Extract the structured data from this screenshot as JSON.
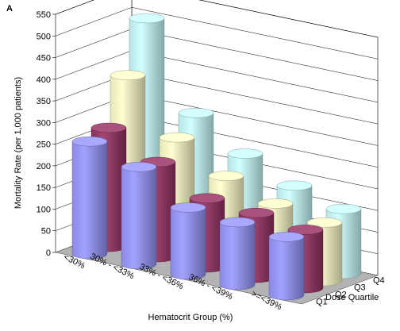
{
  "chart_data": {
    "type": "bar",
    "panel_label": "A",
    "xlabel": "Hematocrit Group (%)",
    "ylabel": "Mortality Rate (per 1,000 patients)",
    "zlabel": "Dose Quartile",
    "ylim": [
      0,
      550
    ],
    "yticks": [
      0,
      50,
      100,
      150,
      200,
      250,
      300,
      350,
      400,
      450,
      500,
      550
    ],
    "categories": [
      "<30%",
      "30% - <33%",
      "33% - <36%",
      "36% - <39%",
      ">=<39%"
    ],
    "series": [
      {
        "name": "Q1",
        "color": "#9999ff",
        "values": [
          260,
          225,
          155,
          145,
          135
        ]
      },
      {
        "name": "Q2",
        "color": "#993366",
        "values": [
          275,
          220,
          160,
          150,
          135
        ]
      },
      {
        "name": "Q3",
        "color": "#ffffcc",
        "values": [
          380,
          260,
          195,
          155,
          135
        ]
      },
      {
        "name": "Q4",
        "color": "#ccffff",
        "values": [
          495,
          300,
          230,
          180,
          150
        ]
      }
    ],
    "grid": true
  }
}
